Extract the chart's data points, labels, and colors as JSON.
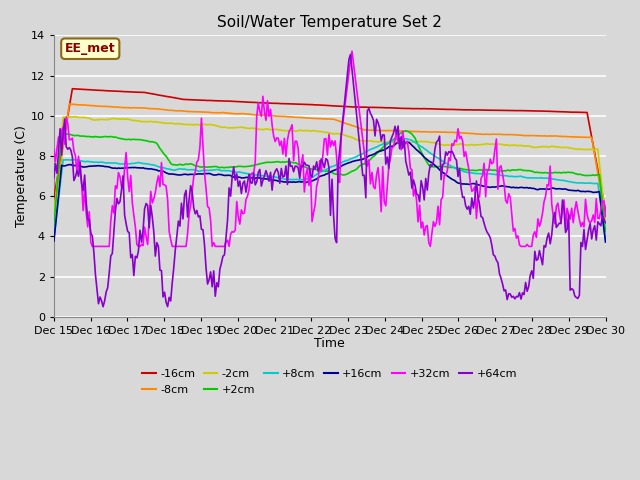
{
  "title": "Soil/Water Temperature Set 2",
  "xlabel": "Time",
  "ylabel": "Temperature (C)",
  "ylim": [
    0,
    14
  ],
  "xlim": [
    0,
    15
  ],
  "xtick_labels": [
    "Dec 15",
    "Dec 16",
    "Dec 17",
    "Dec 18",
    "Dec 19",
    "Dec 20",
    "Dec 21",
    "Dec 22",
    "Dec 23",
    "Dec 24",
    "Dec 25",
    "Dec 26",
    "Dec 27",
    "Dec 28",
    "Dec 29",
    "Dec 30"
  ],
  "background_color": "#d8d8d8",
  "plot_bg_color": "#d8d8d8",
  "grid_color": "#ffffff",
  "annotation_text": "EE_met",
  "annotation_bg": "#ffffcc",
  "annotation_border": "#8b6914",
  "series": [
    {
      "label": "-16cm",
      "color": "#cc0000"
    },
    {
      "label": "-8cm",
      "color": "#ff8800"
    },
    {
      "label": "-2cm",
      "color": "#cccc00"
    },
    {
      "label": "+2cm",
      "color": "#00cc00"
    },
    {
      "label": "+8cm",
      "color": "#00cccc"
    },
    {
      "label": "+16cm",
      "color": "#000099"
    },
    {
      "label": "+32cm",
      "color": "#ff00ff"
    },
    {
      "label": "+64cm",
      "color": "#8800cc"
    }
  ]
}
